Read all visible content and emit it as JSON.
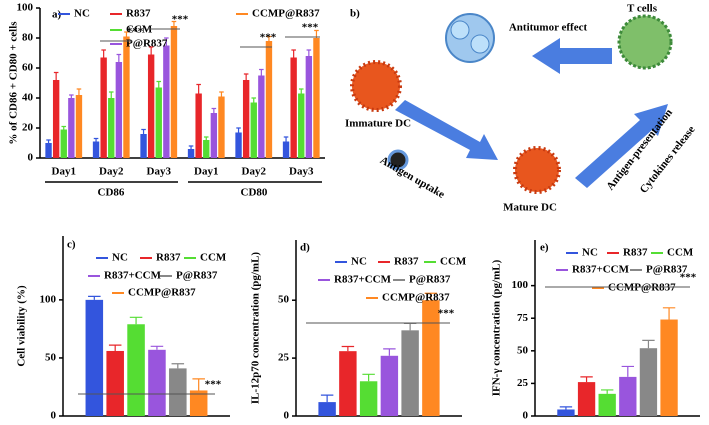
{
  "chart_data": [
    {
      "type": "bar",
      "panel": "a)",
      "ylabel": "% of CD86 + CD80 + cells",
      "categories": [
        "Day1",
        "Day2",
        "Day3",
        "Day1",
        "Day2",
        "Day3"
      ],
      "group_labels": [
        "CD86",
        "CD80"
      ],
      "series": [
        {
          "name": "NC",
          "color": "#3355dd",
          "values": [
            10,
            11,
            16,
            6,
            17,
            11
          ],
          "errors": [
            2,
            2,
            3,
            2,
            3,
            3
          ]
        },
        {
          "name": "R837",
          "color": "#e8262a",
          "values": [
            52,
            67,
            69,
            43,
            52,
            67
          ],
          "errors": [
            5,
            5,
            5,
            6,
            4,
            5
          ]
        },
        {
          "name": "CCM",
          "color": "#55dd33",
          "values": [
            19,
            40,
            47,
            12,
            37,
            43
          ],
          "errors": [
            2,
            4,
            4,
            2,
            3,
            3
          ]
        },
        {
          "name": "P@R837",
          "color": "#9955dd",
          "values": [
            40,
            64,
            75,
            30,
            55,
            68
          ],
          "errors": [
            2,
            5,
            5,
            3,
            4,
            4
          ]
        },
        {
          "name": "CCMP@R837",
          "color": "#ff8822",
          "values": [
            42,
            81,
            88,
            41,
            78,
            80
          ],
          "errors": [
            4,
            3,
            3,
            3,
            3,
            5
          ]
        }
      ],
      "ylim": [
        0,
        100
      ],
      "yticks": [
        0,
        20,
        40,
        60,
        80,
        100
      ],
      "annotations": [
        "***",
        "***",
        "***",
        "***"
      ]
    },
    {
      "type": "bar",
      "panel": "c)",
      "ylabel": "Cell viability (%)",
      "categories": [
        null
      ],
      "series": [
        {
          "name": "NC",
          "color": "#3355dd",
          "values": [
            100
          ],
          "errors": [
            3
          ]
        },
        {
          "name": "R837",
          "color": "#e8262a",
          "values": [
            56
          ],
          "errors": [
            5
          ]
        },
        {
          "name": "CCM",
          "color": "#55dd33",
          "values": [
            79
          ],
          "errors": [
            6
          ]
        },
        {
          "name": "R837+CCM",
          "color": "#9955dd",
          "values": [
            57
          ],
          "errors": [
            3
          ]
        },
        {
          "name": "P@R837",
          "color": "#888888",
          "values": [
            41
          ],
          "errors": [
            4
          ]
        },
        {
          "name": "CCMP@R837",
          "color": "#ff8822",
          "values": [
            22
          ],
          "errors": [
            10
          ]
        }
      ],
      "ylim": [
        0,
        155
      ],
      "yticks": [
        0,
        50,
        100
      ],
      "annotations": [
        "***"
      ]
    },
    {
      "type": "bar",
      "panel": "d)",
      "ylabel": "IL-12p70 concentration (pg/mL)",
      "categories": [
        null
      ],
      "series": [
        {
          "name": "NC",
          "color": "#3355dd",
          "values": [
            6
          ],
          "errors": [
            3
          ]
        },
        {
          "name": "R837",
          "color": "#e8262a",
          "values": [
            28
          ],
          "errors": [
            2
          ]
        },
        {
          "name": "CCM",
          "color": "#55dd33",
          "values": [
            15
          ],
          "errors": [
            3
          ]
        },
        {
          "name": "R837+CCM",
          "color": "#9955dd",
          "values": [
            26
          ],
          "errors": [
            3
          ]
        },
        {
          "name": "P@R837",
          "color": "#888888",
          "values": [
            37
          ],
          "errors": [
            3
          ]
        },
        {
          "name": "CCMP@R837",
          "color": "#ff8822",
          "values": [
            50
          ],
          "errors": [
            3
          ]
        }
      ],
      "ylim": [
        0,
        76
      ],
      "yticks": [
        0,
        25,
        50
      ],
      "annotations": [
        "***"
      ]
    },
    {
      "type": "bar",
      "panel": "e)",
      "ylabel": "IFN-γ concentration (pg/mL)",
      "categories": [
        null
      ],
      "series": [
        {
          "name": "NC",
          "color": "#3355dd",
          "values": [
            5
          ],
          "errors": [
            2
          ]
        },
        {
          "name": "R837",
          "color": "#e8262a",
          "values": [
            26
          ],
          "errors": [
            4
          ]
        },
        {
          "name": "CCM",
          "color": "#55dd33",
          "values": [
            17
          ],
          "errors": [
            3
          ]
        },
        {
          "name": "R837+CCM",
          "color": "#9955dd",
          "values": [
            30
          ],
          "errors": [
            8
          ]
        },
        {
          "name": "P@R837",
          "color": "#888888",
          "values": [
            52
          ],
          "errors": [
            6
          ]
        },
        {
          "name": "CCMP@R837",
          "color": "#ff8822",
          "values": [
            74
          ],
          "errors": [
            9
          ]
        }
      ],
      "ylim": [
        0,
        135
      ],
      "yticks": [
        0,
        25,
        50,
        75,
        100
      ],
      "annotations": [
        "***"
      ]
    }
  ],
  "diagram": {
    "panel": "b)",
    "labels": [
      "Antitumor effect",
      "T cells",
      "Immature DC",
      "Antigen uptake",
      "Mature DC",
      "Antigen-presentation",
      "Cytokines release"
    ]
  }
}
